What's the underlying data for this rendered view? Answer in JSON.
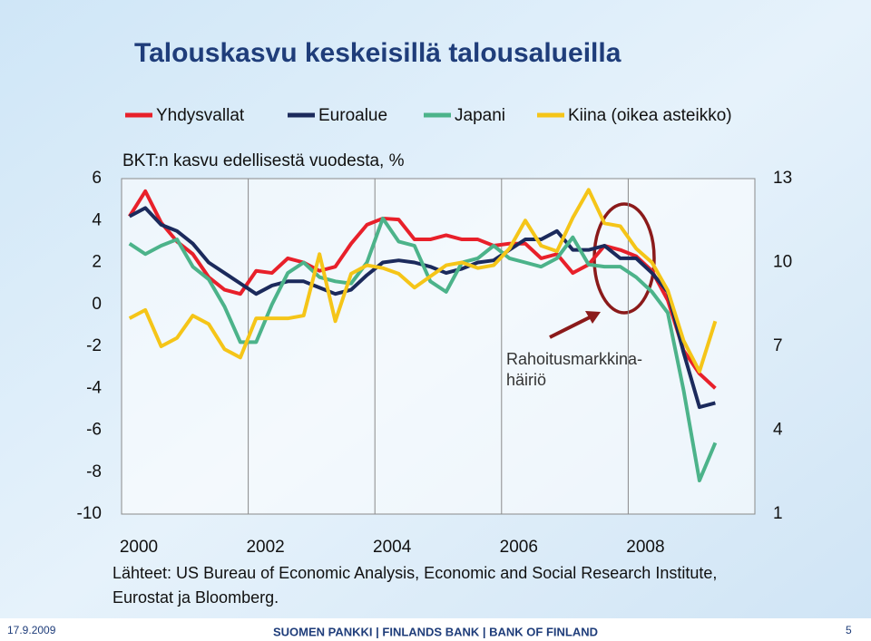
{
  "chart_data": {
    "type": "line",
    "title": "Talouskasvu keskeisillä talousalueilla",
    "subtitle": "BKT:n kasvu edellisestä vuodesta, %",
    "categories": [
      "2000",
      null,
      null,
      null,
      null,
      null,
      null,
      null,
      "2002",
      null,
      null,
      null,
      null,
      null,
      null,
      null,
      "2004",
      null,
      null,
      null,
      null,
      null,
      null,
      null,
      "2006",
      null,
      null,
      null,
      null,
      null,
      null,
      null,
      "2008",
      null,
      null,
      null,
      null,
      null,
      null,
      null
    ],
    "series": [
      {
        "name": "Yhdysvallat",
        "color": "#e8202a",
        "values": [
          4.2,
          5.4,
          3.9,
          3.0,
          2.4,
          1.3,
          0.7,
          0.5,
          1.6,
          1.5,
          2.2,
          2.0,
          1.6,
          1.8,
          2.9,
          3.8,
          4.1,
          4.05,
          3.1,
          3.1,
          3.3,
          3.1,
          3.1,
          2.8,
          2.9,
          2.9,
          2.2,
          2.4,
          1.5,
          1.9,
          2.8,
          2.6,
          2.3,
          1.6,
          0.2,
          -2.2,
          -3.3,
          -4.0,
          null,
          null
        ]
      },
      {
        "name": "Euroalue",
        "color": "#1b2a5c",
        "values": [
          4.2,
          4.6,
          3.8,
          3.5,
          2.9,
          2.0,
          1.5,
          1.0,
          0.5,
          0.9,
          1.1,
          1.1,
          0.8,
          0.5,
          0.7,
          1.4,
          2.0,
          2.1,
          2.0,
          1.8,
          1.5,
          1.7,
          2.0,
          2.1,
          2.6,
          3.1,
          3.1,
          3.5,
          2.6,
          2.6,
          2.8,
          2.2,
          2.2,
          1.5,
          0.6,
          -2.3,
          -4.9,
          -4.7,
          null,
          null
        ]
      },
      {
        "name": "Japani",
        "color": "#4cb38a",
        "values": [
          2.9,
          2.4,
          2.8,
          3.1,
          1.8,
          1.2,
          -0.1,
          -1.8,
          -1.8,
          0.0,
          1.5,
          2.0,
          1.3,
          1.1,
          1.0,
          2.0,
          4.1,
          3.0,
          2.8,
          1.1,
          0.6,
          2.0,
          2.2,
          2.8,
          2.2,
          2.0,
          1.8,
          2.2,
          3.2,
          1.9,
          1.8,
          1.8,
          1.3,
          0.6,
          -0.4,
          -4.1,
          -8.4,
          -6.6,
          null,
          null
        ]
      },
      {
        "name": "Kiina (oikea asteikko)",
        "color": "#f5c518",
        "axis": "y2",
        "values": [
          8.0,
          8.3,
          7.0,
          7.3,
          8.1,
          7.8,
          6.9,
          6.6,
          8.0,
          8.0,
          8.0,
          8.1,
          10.3,
          7.9,
          9.6,
          9.9,
          9.8,
          9.6,
          9.1,
          9.5,
          9.9,
          10.0,
          9.8,
          9.9,
          10.5,
          11.5,
          10.6,
          10.4,
          11.6,
          12.6,
          11.4,
          11.3,
          10.5,
          10.0,
          9.0,
          7.2,
          6.1,
          7.9,
          null,
          null
        ]
      }
    ],
    "ylim": [
      -10,
      6
    ],
    "yticks": [
      -10,
      -8,
      -6,
      -4,
      -2,
      0,
      2,
      4,
      6
    ],
    "y2lim": [
      1,
      13
    ],
    "y2ticks": [
      1,
      4,
      7,
      10,
      13
    ],
    "annotation": [
      "Rahoitusmarkkina-",
      "häiriö"
    ],
    "source": [
      "Lähteet: US Bureau of Economic Analysis, Economic and Social Research Institute,",
      "Eurostat ja Bloomberg."
    ],
    "footer": {
      "date": "17.9.2009",
      "org": "SUOMEN PANKKI | FINLANDS BANK | BANK OF FINLAND",
      "page": "5"
    }
  }
}
